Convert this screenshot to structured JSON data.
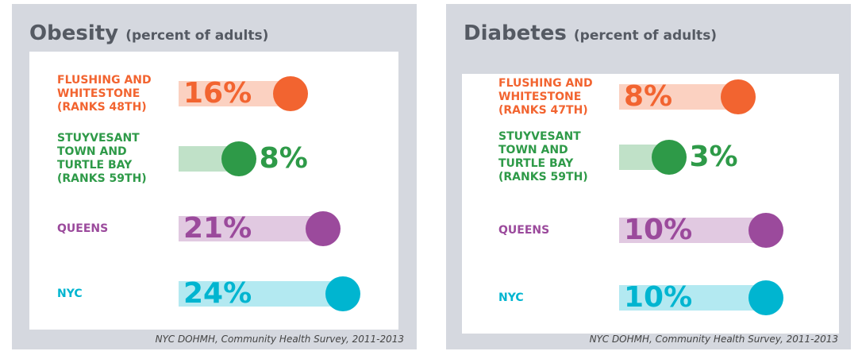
{
  "chart_data": [
    {
      "type": "lollipop",
      "title": "Obesity",
      "subtitle": "(percent of adults)",
      "categories": [
        "FLUSHING AND WHITESTONE (RANKS 48TH)",
        "STUYVESANT TOWN AND TURTLE BAY (RANKS 59TH)",
        "QUEENS",
        "NYC"
      ],
      "values": [
        16,
        8,
        21,
        24
      ],
      "value_labels": [
        "16%",
        "8%",
        "21%",
        "24%"
      ],
      "colors": [
        "#f26430",
        "#2e9a48",
        "#9b4a9c",
        "#00b5d0"
      ],
      "source": "NYC DOHMH, Community Health Survey, 2011-2013"
    },
    {
      "type": "lollipop",
      "title": "Diabetes",
      "subtitle": "(percent of adults)",
      "categories": [
        "FLUSHING AND WHITESTONE (RANKS 47TH)",
        "STUYVESANT TOWN AND TURTLE BAY (RANKS 59TH)",
        "QUEENS",
        "NYC"
      ],
      "values": [
        8,
        3,
        10,
        10
      ],
      "value_labels": [
        "8%",
        "3%",
        "10%",
        "10%"
      ],
      "colors": [
        "#f26430",
        "#2e9a48",
        "#9b4a9c",
        "#00b5d0"
      ],
      "source": "NYC DOHMH, Community Health Survey, 2011-2013"
    }
  ]
}
